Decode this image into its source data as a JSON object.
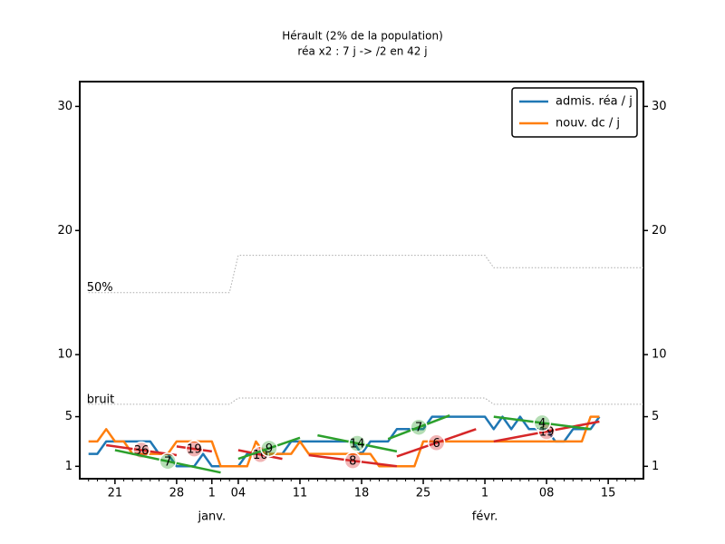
{
  "chart_data": {
    "type": "line",
    "title": "Hérault (2% de la population)",
    "subtitle": "réa x2 : 7 j -> /2 en 42 j",
    "x": [
      "12-18",
      "12-19",
      "12-20",
      "12-21",
      "12-22",
      "12-23",
      "12-24",
      "12-25",
      "12-26",
      "12-27",
      "12-28",
      "12-29",
      "12-30",
      "12-31",
      "01-01",
      "01-02",
      "01-03",
      "01-04",
      "01-05",
      "01-06",
      "01-07",
      "01-08",
      "01-09",
      "01-10",
      "01-11",
      "01-12",
      "01-13",
      "01-14",
      "01-15",
      "01-16",
      "01-17",
      "01-18",
      "01-19",
      "01-20",
      "01-21",
      "01-22",
      "01-23",
      "01-24",
      "01-25",
      "01-26",
      "01-27",
      "01-28",
      "01-29",
      "01-30",
      "01-31",
      "02-01",
      "02-02",
      "02-03",
      "02-04",
      "02-05",
      "02-06",
      "02-07",
      "02-08",
      "02-09",
      "02-10",
      "02-11",
      "02-12",
      "02-13",
      "02-14"
    ],
    "series": [
      {
        "name": "admis. réa / j",
        "color": "#1f77b4",
        "values": [
          2,
          2,
          3,
          3,
          3,
          3,
          3,
          3,
          2,
          2,
          1,
          1,
          1,
          2,
          1,
          1,
          1,
          1,
          2,
          2,
          2,
          2,
          2,
          3,
          3,
          3,
          3,
          3,
          3,
          3,
          3,
          2,
          3,
          3,
          3,
          4,
          4,
          4,
          4,
          5,
          5,
          5,
          5,
          5,
          5,
          5,
          4,
          5,
          4,
          5,
          4,
          4,
          4,
          3,
          3,
          4,
          4,
          4,
          5
        ]
      },
      {
        "name": "nouv. dc / j",
        "color": "#ff7f0e",
        "values": [
          3,
          3,
          4,
          3,
          3,
          2,
          2,
          2,
          2,
          2,
          3,
          3,
          3,
          3,
          3,
          1,
          1,
          1,
          1,
          3,
          2,
          2,
          2,
          2,
          3,
          2,
          2,
          2,
          2,
          2,
          2,
          2,
          2,
          1,
          1,
          1,
          1,
          1,
          3,
          3,
          3,
          3,
          3,
          3,
          3,
          3,
          3,
          3,
          3,
          3,
          3,
          3,
          3,
          3,
          3,
          3,
          3,
          5,
          5
        ]
      }
    ],
    "reference_lines": [
      {
        "label": "50%",
        "color": "#aaaaaa",
        "x": [
          "12-18",
          "01-03",
          "01-04",
          "02-01",
          "02-02",
          "02-19"
        ],
        "values": [
          15,
          15,
          18,
          18,
          17,
          17
        ]
      },
      {
        "label": "bruit",
        "color": "#aaaaaa",
        "x": [
          "12-18",
          "01-03",
          "01-04",
          "02-01",
          "02-02",
          "02-19"
        ],
        "values": [
          6,
          6,
          6.5,
          6.5,
          6,
          6
        ]
      }
    ],
    "fits": [
      {
        "label": "36",
        "color": "#d62728",
        "x": [
          "12-20",
          "12-28"
        ],
        "values": [
          2.7,
          1.9
        ]
      },
      {
        "label": "19",
        "color": "#d62728",
        "x": [
          "12-28",
          "01-01"
        ],
        "values": [
          2.6,
          2.2
        ]
      },
      {
        "label": "10",
        "color": "#d62728",
        "x": [
          "01-04",
          "01-09"
        ],
        "values": [
          2.3,
          1.6
        ]
      },
      {
        "label": "8",
        "color": "#d62728",
        "x": [
          "01-12",
          "01-22"
        ],
        "values": [
          1.9,
          1.0
        ]
      },
      {
        "label": "6",
        "color": "#d62728",
        "x": [
          "01-22",
          "01-31"
        ],
        "values": [
          1.8,
          4.0
        ]
      },
      {
        "label": "19",
        "color": "#d62728",
        "x": [
          "02-02",
          "02-14"
        ],
        "values": [
          3.0,
          4.6
        ]
      },
      {
        "label": "7",
        "color": "#2ca02c",
        "x": [
          "12-21",
          "01-02"
        ],
        "values": [
          2.3,
          0.5
        ]
      },
      {
        "label": "9",
        "color": "#2ca02c",
        "x": [
          "01-04",
          "01-11"
        ],
        "values": [
          1.6,
          3.3
        ]
      },
      {
        "label": "14",
        "color": "#2ca02c",
        "x": [
          "01-13",
          "01-22"
        ],
        "values": [
          3.5,
          2.2
        ]
      },
      {
        "label": "7",
        "color": "#2ca02c",
        "x": [
          "01-21",
          "01-28"
        ],
        "values": [
          3.2,
          5.1
        ]
      },
      {
        "label": "4",
        "color": "#2ca02c",
        "x": [
          "02-02",
          "02-13"
        ],
        "values": [
          5.0,
          4.0
        ]
      }
    ],
    "xlim": [
      "12-17",
      "02-19"
    ],
    "xticks": [
      {
        "value": "12-21",
        "label": "21"
      },
      {
        "value": "12-28",
        "label": "28"
      },
      {
        "value": "01-01",
        "label": "1"
      },
      {
        "value": "01-04",
        "label": "04"
      },
      {
        "value": "01-11",
        "label": "11"
      },
      {
        "value": "01-18",
        "label": "18"
      },
      {
        "value": "01-25",
        "label": "25"
      },
      {
        "value": "02-01",
        "label": "1"
      },
      {
        "value": "02-08",
        "label": "08"
      },
      {
        "value": "02-15",
        "label": "15"
      }
    ],
    "month_labels": [
      {
        "value": "01-01",
        "label": "janv."
      },
      {
        "value": "02-01",
        "label": "févr."
      }
    ],
    "ylim": [
      0,
      32
    ],
    "yticks": [
      1,
      5,
      10,
      20,
      30
    ],
    "y2lim": [
      0,
      32
    ],
    "y2ticks": [
      1,
      5,
      10,
      20,
      30
    ],
    "legend": "upper right"
  }
}
